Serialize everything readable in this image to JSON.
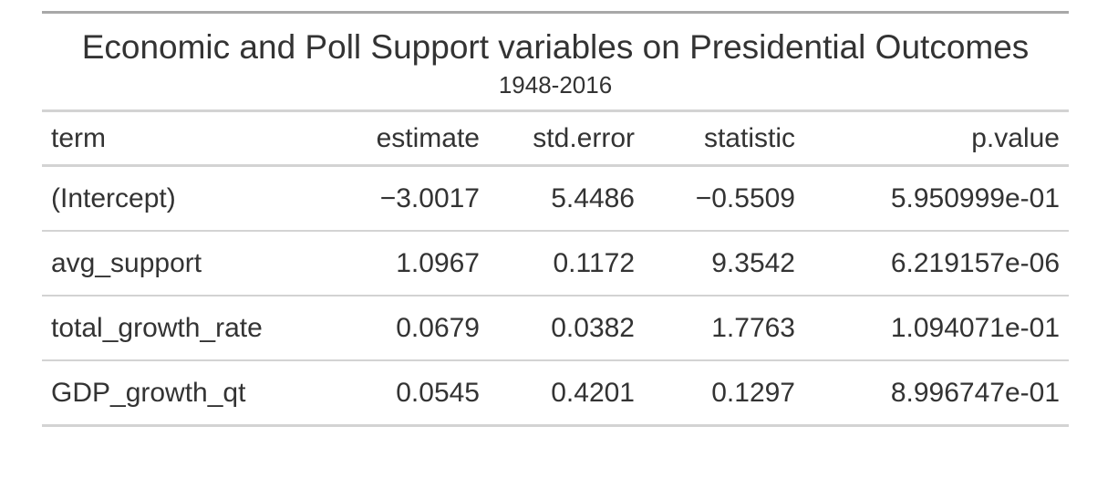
{
  "table": {
    "title": "Economic and Poll Support variables on Presidential Outcomes",
    "subtitle": "1948-2016",
    "columns": [
      "term",
      "estimate",
      "std.error",
      "statistic",
      "p.value"
    ],
    "rows": [
      [
        "(Intercept)",
        "−3.0017",
        "5.4486",
        "−0.5509",
        "5.950999e-01"
      ],
      [
        "avg_support",
        "1.0967",
        "0.1172",
        "9.3542",
        "6.219157e-06"
      ],
      [
        "total_growth_rate",
        "0.0679",
        "0.0382",
        "1.7763",
        "1.094071e-01"
      ],
      [
        "GDP_growth_qt",
        "0.0545",
        "0.4201",
        "0.1297",
        "8.996747e-01"
      ]
    ]
  }
}
